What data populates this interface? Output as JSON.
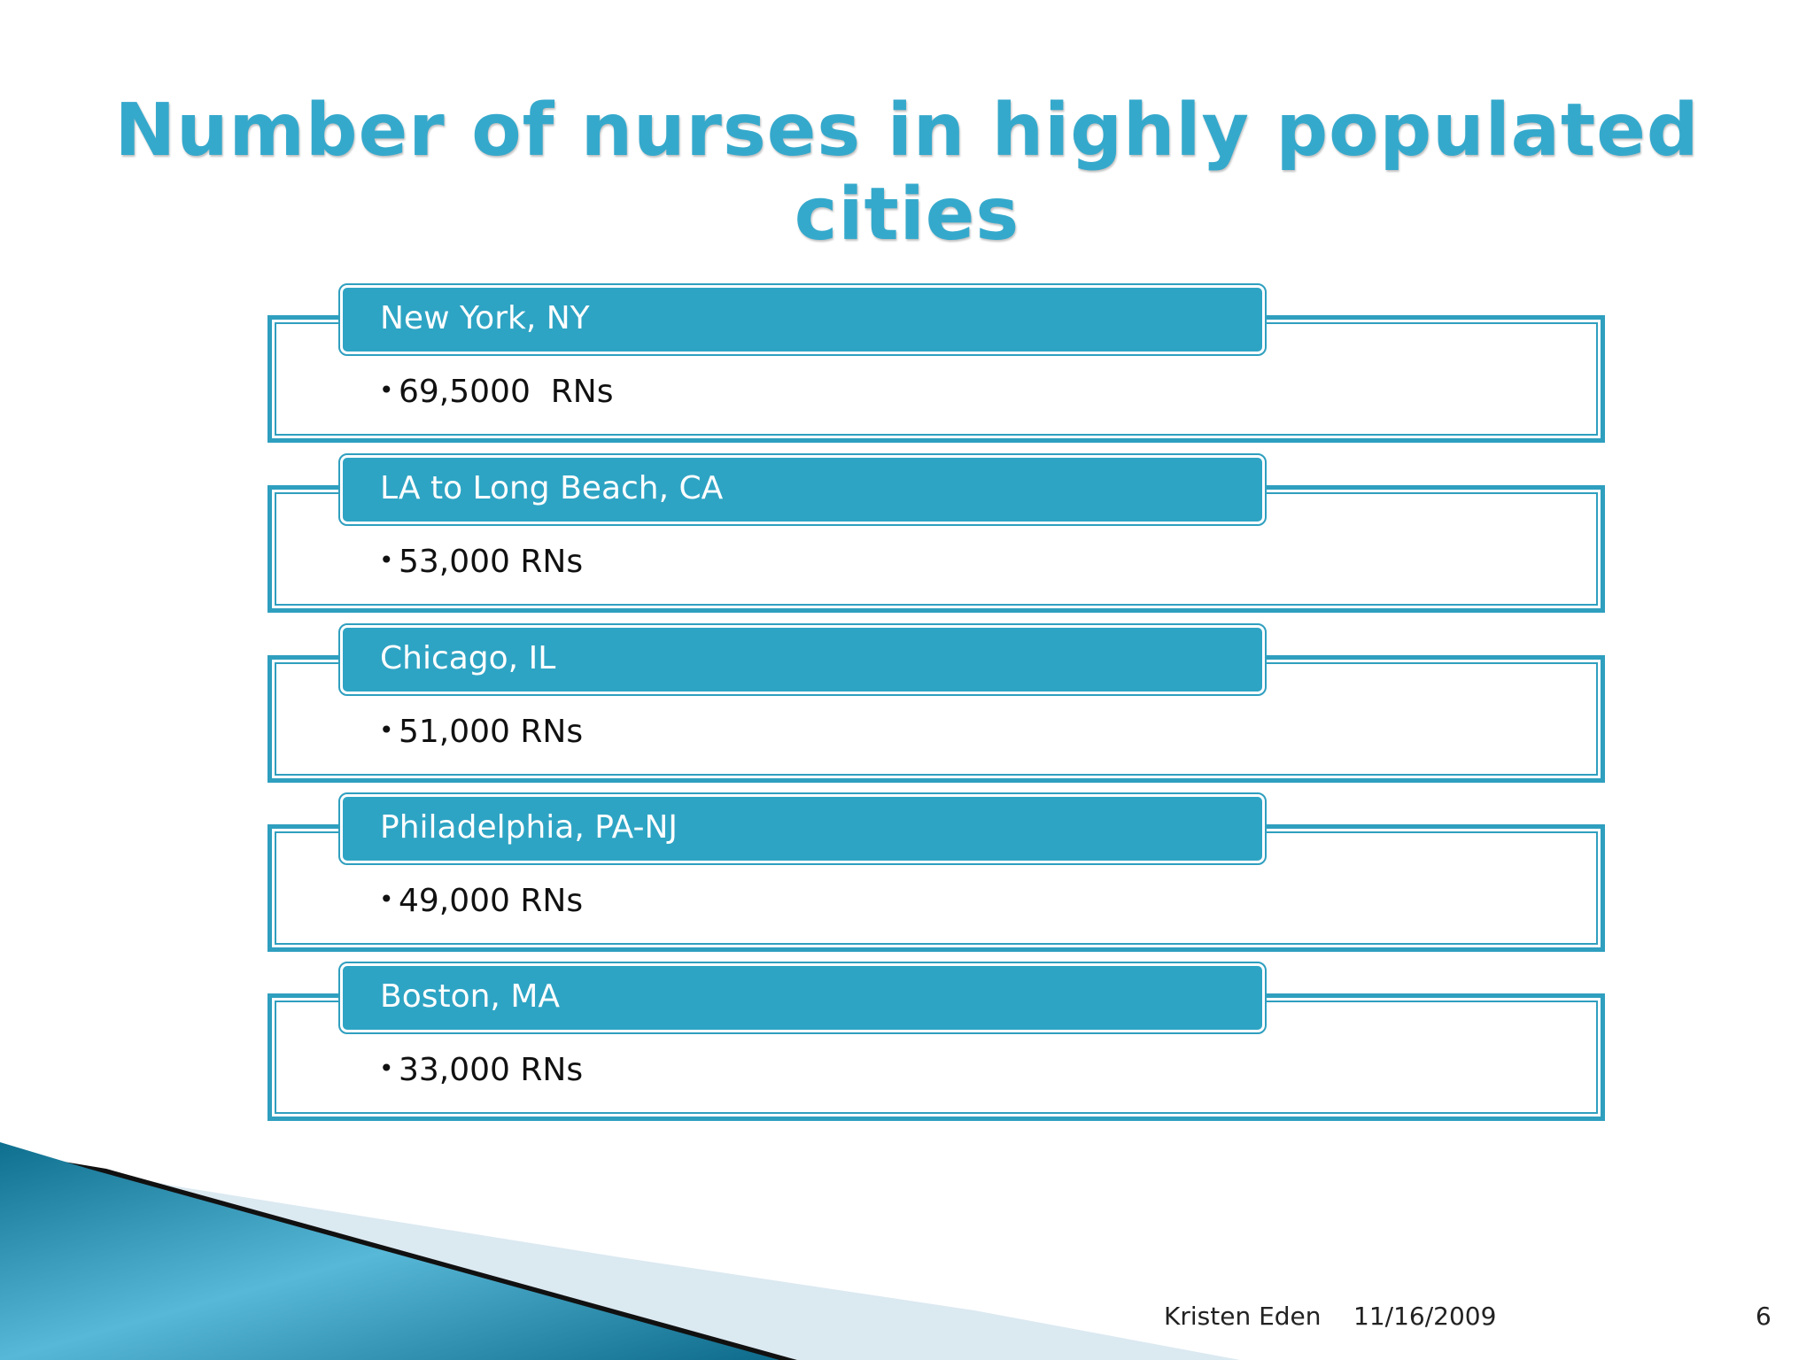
{
  "slide": {
    "title": "Number of nurses in highly populated cities"
  },
  "items": [
    {
      "header": "New York, NY",
      "value": "69,5000  RNs"
    },
    {
      "header": "LA to Long Beach, CA",
      "value": "53,000 RNs"
    },
    {
      "header": "Chicago, IL",
      "value": "51,000 RNs"
    },
    {
      "header": "Philadelphia, PA-NJ",
      "value": "49,000 RNs"
    },
    {
      "header": "Boston, MA",
      "value": "33,000 RNs"
    }
  ],
  "footer": {
    "author": "Kristen Eden",
    "date": "11/16/2009",
    "page_number": "6"
  },
  "colors": {
    "accent": "#2ea4c4",
    "title": "#35a9cc"
  }
}
